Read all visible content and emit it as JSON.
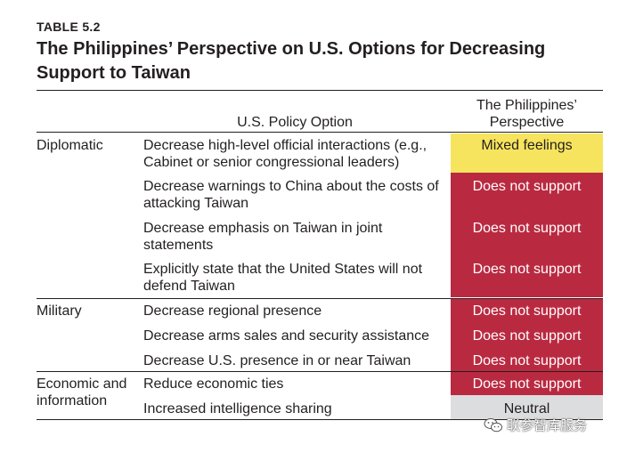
{
  "table": {
    "label": "TABLE 5.2",
    "title": "The Philippines’ Perspective on U.S. Options for Decreasing Support to Taiwan",
    "headers": {
      "option": "U.S. Policy Option",
      "perspective_line1": "The Philippines’",
      "perspective_line2": "Perspective"
    },
    "groups": [
      {
        "category": "Diplomatic",
        "rows": [
          {
            "option": "Decrease high-level official interactions (e.g., Cabinet or senior congressional leaders)",
            "perspective": "Mixed feelings",
            "color": "#f7e45e"
          },
          {
            "option": "Decrease warnings to China about the costs of attacking Taiwan",
            "perspective": "Does not support",
            "color": "#b92a41"
          },
          {
            "option": "Decrease emphasis on Taiwan in joint statements",
            "perspective": "Does not support",
            "color": "#b92a41"
          },
          {
            "option": "Explicitly state that the United States will not defend Taiwan",
            "perspective": "Does not support",
            "color": "#b92a41"
          }
        ]
      },
      {
        "category": "Military",
        "rows": [
          {
            "option": "Decrease regional presence",
            "perspective": "Does not support",
            "color": "#b92a41"
          },
          {
            "option": "Decrease arms sales and security assistance",
            "perspective": "Does not support",
            "color": "#b92a41"
          },
          {
            "option": "Decrease U.S. presence in or near Taiwan",
            "perspective": "Does not support",
            "color": "#b92a41"
          }
        ]
      },
      {
        "category": "Economic and information",
        "rows": [
          {
            "option": "Reduce economic ties",
            "perspective": "Does not support",
            "color": "#b92a41"
          },
          {
            "option": "Increased intelligence sharing",
            "perspective": "Neutral",
            "color": "#dcddde"
          }
        ]
      }
    ]
  },
  "watermark": {
    "text": "联参智库服务",
    "icon": "wechat-icon"
  }
}
